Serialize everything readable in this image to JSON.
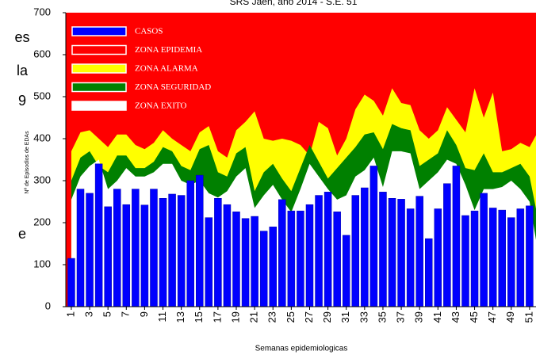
{
  "chart_data": {
    "type": "bar",
    "title": "SRS Jaen, año 2014 - S.E. 51",
    "y_label": "Nº de Episodios de EDAs",
    "x_label": "Semanas epidemiologicas",
    "side_text": [
      "es",
      "la",
      "9",
      "e"
    ],
    "x": [
      1,
      2,
      3,
      4,
      5,
      6,
      7,
      8,
      9,
      10,
      11,
      12,
      13,
      14,
      15,
      16,
      17,
      18,
      19,
      20,
      21,
      22,
      23,
      24,
      25,
      26,
      27,
      28,
      29,
      30,
      31,
      32,
      33,
      34,
      35,
      36,
      37,
      38,
      39,
      40,
      41,
      42,
      43,
      44,
      45,
      46,
      47,
      48,
      49,
      50,
      51,
      52
    ],
    "xlim": [
      0.4,
      51.7
    ],
    "xticks": [
      1,
      3,
      5,
      7,
      9,
      11,
      13,
      15,
      17,
      19,
      21,
      23,
      25,
      27,
      29,
      31,
      33,
      35,
      37,
      39,
      41,
      43,
      45,
      47,
      49,
      51
    ],
    "ylim": [
      0,
      700
    ],
    "yticks": [
      0,
      100,
      200,
      300,
      400,
      500,
      600,
      700
    ],
    "series": [
      {
        "name": "CASOS",
        "color": "#0000ff",
        "values": [
          115,
          280,
          270,
          340,
          238,
          280,
          243,
          280,
          242,
          280,
          258,
          268,
          265,
          300,
          313,
          212,
          258,
          243,
          226,
          210,
          215,
          180,
          190,
          255,
          228,
          228,
          243,
          265,
          273,
          226,
          170,
          265,
          283,
          335,
          273,
          258,
          256,
          233,
          263,
          162,
          233,
          293,
          335,
          217,
          228,
          270,
          235,
          230,
          212,
          233,
          240,
          null
        ]
      }
    ],
    "zones": [
      {
        "name": "ZONA EPIDEMIA",
        "color": "#ff0000"
      },
      {
        "name": "ZONA ALARMA",
        "color": "#ffff00",
        "values": [
          370,
          415,
          420,
          400,
          380,
          410,
          410,
          385,
          375,
          390,
          420,
          400,
          385,
          370,
          415,
          430,
          370,
          355,
          420,
          440,
          465,
          400,
          395,
          400,
          395,
          385,
          360,
          440,
          425,
          360,
          400,
          470,
          505,
          490,
          455,
          520,
          485,
          480,
          420,
          400,
          420,
          475,
          445,
          415,
          520,
          450,
          510,
          370,
          375,
          390,
          380,
          420
        ]
      },
      {
        "name": "ZONA SEGURIDAD",
        "color": "#008000",
        "values": [
          300,
          355,
          370,
          335,
          320,
          360,
          360,
          330,
          330,
          345,
          380,
          370,
          335,
          325,
          375,
          385,
          320,
          310,
          365,
          380,
          275,
          320,
          340,
          305,
          275,
          330,
          385,
          345,
          305,
          330,
          355,
          380,
          410,
          415,
          375,
          435,
          425,
          420,
          335,
          350,
          365,
          420,
          385,
          330,
          325,
          365,
          320,
          320,
          330,
          340,
          310,
          200
        ]
      },
      {
        "name": "ZONA EXITO",
        "color": "#ffffff",
        "values": [
          255,
          310,
          335,
          350,
          280,
          300,
          330,
          310,
          310,
          320,
          340,
          340,
          300,
          290,
          300,
          270,
          260,
          275,
          310,
          330,
          235,
          265,
          290,
          255,
          225,
          280,
          340,
          310,
          280,
          255,
          265,
          310,
          325,
          355,
          285,
          370,
          370,
          365,
          280,
          300,
          320,
          350,
          340,
          290,
          230,
          280,
          280,
          285,
          300,
          280,
          250,
          120
        ]
      }
    ]
  }
}
